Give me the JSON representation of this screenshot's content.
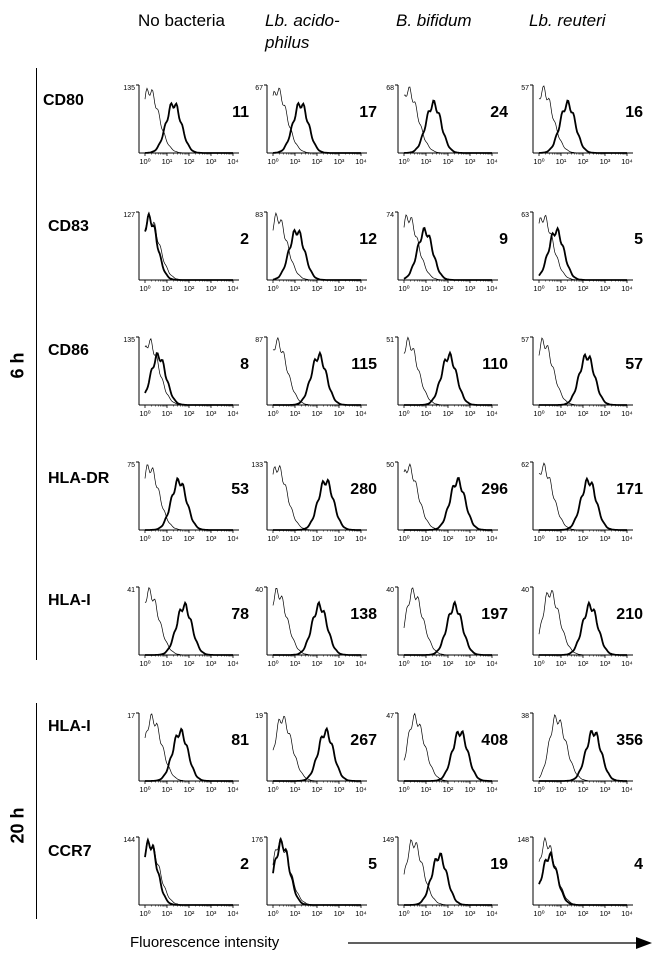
{
  "columns": [
    "No bacteria",
    "Lb. acido-philus",
    "B. bifidum",
    "Lb. reuteri"
  ],
  "column_italic": [
    false,
    true,
    true,
    true
  ],
  "time_groups": [
    {
      "label": "6 h",
      "markers": [
        "CD80",
        "CD83",
        "CD86",
        "HLA-DR",
        "HLA-I"
      ]
    },
    {
      "label": "20 h",
      "markers": [
        "HLA-I",
        "CCR7"
      ]
    }
  ],
  "x_axis_label": "Fluorescence intensity",
  "x_tick_labels": [
    "10⁰",
    "10¹",
    "10²",
    "10³",
    "10⁴"
  ],
  "chart_data": {
    "type": "histogram-grid",
    "xlabel": "Fluorescence intensity",
    "x_scale": "log",
    "xlim": [
      1,
      10000
    ],
    "panels": [
      {
        "time": "6 h",
        "marker": "CD80",
        "column": "No bacteria",
        "ymax": "135",
        "mfi": "11",
        "control_peak": 1.5,
        "sample_peak": 20
      },
      {
        "time": "6 h",
        "marker": "CD80",
        "column": "Lb. acido-philus",
        "ymax": "67",
        "mfi": "17",
        "control_peak": 1.5,
        "sample_peak": 18
      },
      {
        "time": "6 h",
        "marker": "CD80",
        "column": "B. bifidum",
        "ymax": "68",
        "mfi": "24",
        "control_peak": 1.5,
        "sample_peak": 22
      },
      {
        "time": "6 h",
        "marker": "CD80",
        "column": "Lb. reuteri",
        "ymax": "57",
        "mfi": "16",
        "control_peak": 1.5,
        "sample_peak": 20
      },
      {
        "time": "6 h",
        "marker": "CD83",
        "column": "No bacteria",
        "ymax": "127",
        "mfi": "2",
        "control_peak": 1.5,
        "sample_peak": 1.6
      },
      {
        "time": "6 h",
        "marker": "CD83",
        "column": "Lb. acido-philus",
        "ymax": "83",
        "mfi": "12",
        "control_peak": 1.5,
        "sample_peak": 12
      },
      {
        "time": "6 h",
        "marker": "CD83",
        "column": "B. bifidum",
        "ymax": "74",
        "mfi": "9",
        "control_peak": 1.5,
        "sample_peak": 9
      },
      {
        "time": "6 h",
        "marker": "CD83",
        "column": "Lb. reuteri",
        "ymax": "63",
        "mfi": "5",
        "control_peak": 1.5,
        "sample_peak": 6
      },
      {
        "time": "6 h",
        "marker": "CD86",
        "column": "No bacteria",
        "ymax": "135",
        "mfi": "8",
        "control_peak": 1.5,
        "sample_peak": 4
      },
      {
        "time": "6 h",
        "marker": "CD86",
        "column": "Lb. acido-philus",
        "ymax": "87",
        "mfi": "115",
        "control_peak": 1.5,
        "sample_peak": 120
      },
      {
        "time": "6 h",
        "marker": "CD86",
        "column": "B. bifidum",
        "ymax": "51",
        "mfi": "110",
        "control_peak": 1.5,
        "sample_peak": 110
      },
      {
        "time": "6 h",
        "marker": "CD86",
        "column": "Lb. reuteri",
        "ymax": "57",
        "mfi": "57",
        "control_peak": 1.5,
        "sample_peak": 150
      },
      {
        "time": "6 h",
        "marker": "HLA-DR",
        "column": "No bacteria",
        "ymax": "75",
        "mfi": "53",
        "control_peak": 1.5,
        "sample_peak": 35
      },
      {
        "time": "6 h",
        "marker": "HLA-DR",
        "column": "Lb. acido-philus",
        "ymax": "133",
        "mfi": "280",
        "control_peak": 1.5,
        "sample_peak": 250
      },
      {
        "time": "6 h",
        "marker": "HLA-DR",
        "column": "B. bifidum",
        "ymax": "50",
        "mfi": "296",
        "control_peak": 1.5,
        "sample_peak": 270
      },
      {
        "time": "6 h",
        "marker": "HLA-DR",
        "column": "Lb. reuteri",
        "ymax": "62",
        "mfi": "171",
        "control_peak": 1.5,
        "sample_peak": 180
      },
      {
        "time": "6 h",
        "marker": "HLA-I",
        "column": "No bacteria",
        "ymax": "41",
        "mfi": "78",
        "control_peak": 1.5,
        "sample_peak": 60
      },
      {
        "time": "6 h",
        "marker": "HLA-I",
        "column": "Lb. acido-philus",
        "ymax": "40",
        "mfi": "138",
        "control_peak": 1.5,
        "sample_peak": 130
      },
      {
        "time": "6 h",
        "marker": "HLA-I",
        "column": "B. bifidum",
        "ymax": "40",
        "mfi": "197",
        "control_peak": 2.5,
        "sample_peak": 200
      },
      {
        "time": "6 h",
        "marker": "HLA-I",
        "column": "Lb. reuteri",
        "ymax": "40",
        "mfi": "210",
        "control_peak": 3,
        "sample_peak": 210
      },
      {
        "time": "20 h",
        "marker": "HLA-I",
        "column": "No bacteria",
        "ymax": "17",
        "mfi": "81",
        "control_peak": 2,
        "sample_peak": 40
      },
      {
        "time": "20 h",
        "marker": "HLA-I",
        "column": "Lb. acido-philus",
        "ymax": "19",
        "mfi": "267",
        "control_peak": 2.5,
        "sample_peak": 250
      },
      {
        "time": "20 h",
        "marker": "HLA-I",
        "column": "B. bifidum",
        "ymax": "47",
        "mfi": "408",
        "control_peak": 3,
        "sample_peak": 350
      },
      {
        "time": "20 h",
        "marker": "HLA-I",
        "column": "Lb. reuteri",
        "ymax": "38",
        "mfi": "356",
        "control_peak": 6,
        "sample_peak": 300
      },
      {
        "time": "20 h",
        "marker": "CCR7",
        "column": "No bacteria",
        "ymax": "144",
        "mfi": "2",
        "control_peak": 1.5,
        "sample_peak": 1.6
      },
      {
        "time": "20 h",
        "marker": "CCR7",
        "column": "Lb. acido-philus",
        "ymax": "176",
        "mfi": "5",
        "control_peak": 2,
        "sample_peak": 2.5
      },
      {
        "time": "20 h",
        "marker": "CCR7",
        "column": "B. bifidum",
        "ymax": "149",
        "mfi": "19",
        "control_peak": 2.5,
        "sample_peak": 40
      },
      {
        "time": "20 h",
        "marker": "CCR7",
        "column": "Lb. reuteri",
        "ymax": "148",
        "mfi": "4",
        "control_peak": 2,
        "sample_peak": 3
      }
    ]
  }
}
